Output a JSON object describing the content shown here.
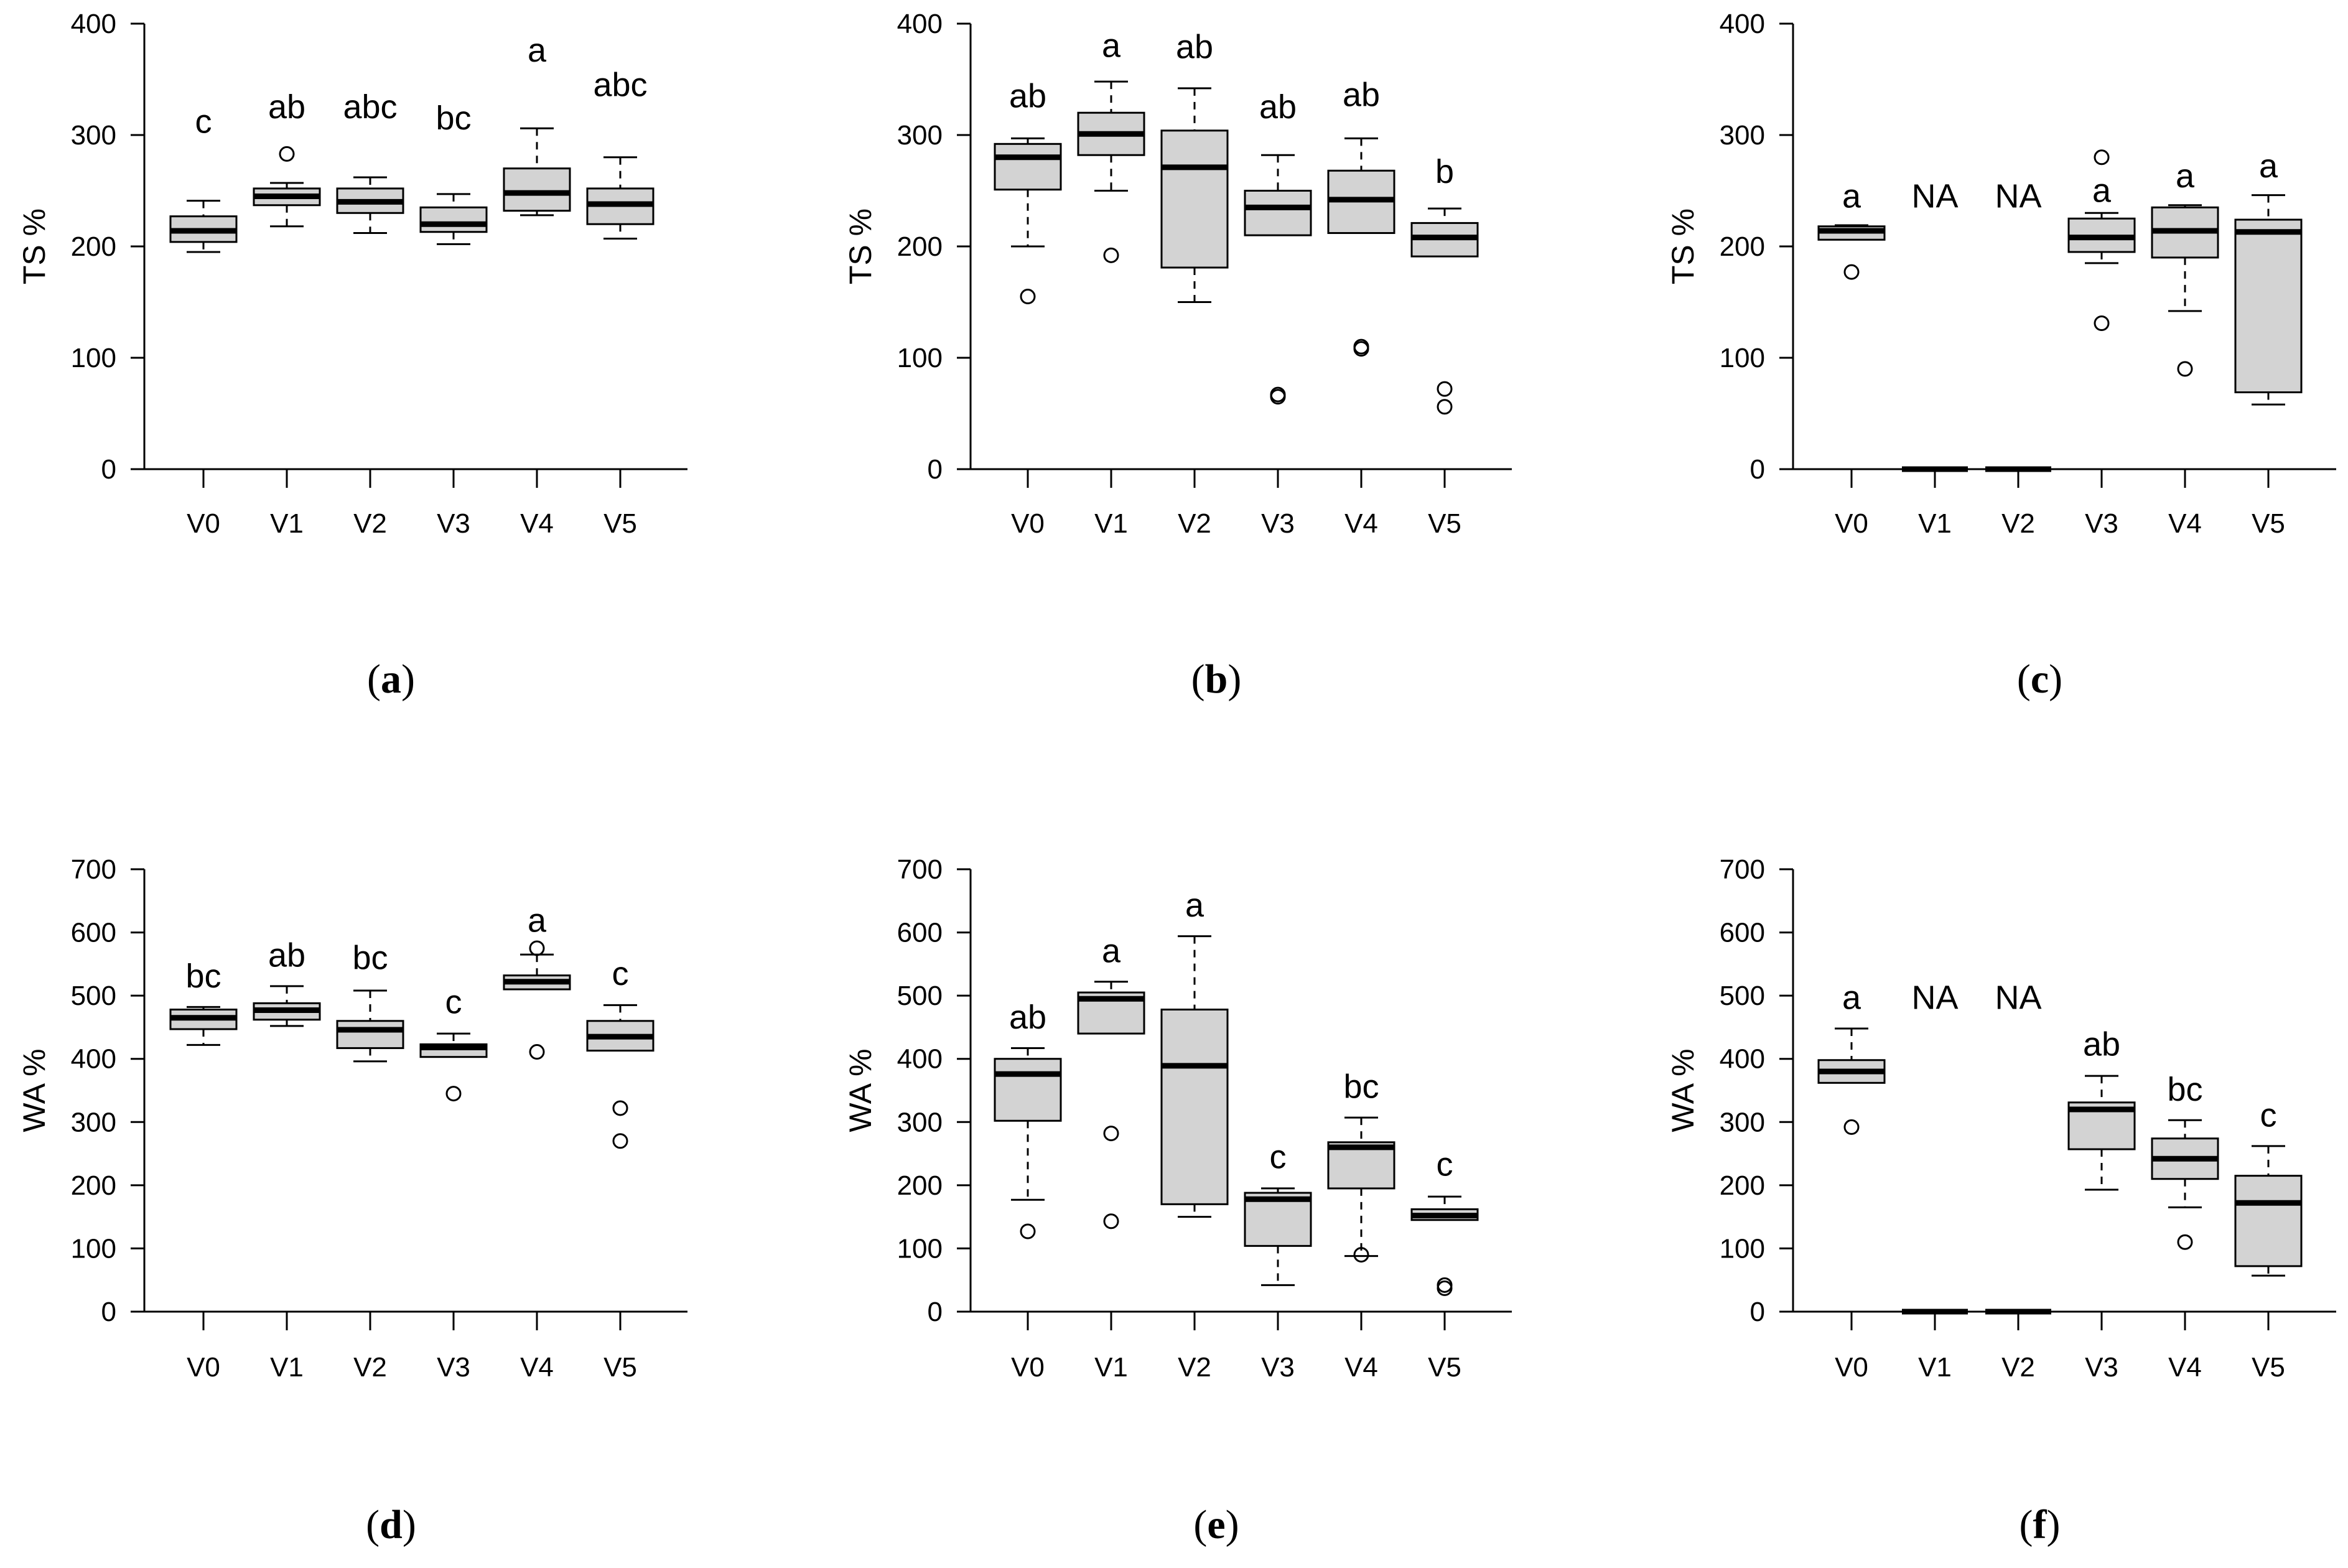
{
  "styles": {
    "box_fill": "#d3d3d3",
    "stroke": "#000000",
    "background": "#ffffff"
  },
  "chart_data": [
    {
      "id": "a",
      "type": "boxplot",
      "caption_letter": "a",
      "ylabel": "TS %",
      "ylim": [
        0,
        400
      ],
      "yticks": [
        0,
        100,
        200,
        300,
        400
      ],
      "categories": [
        "V0",
        "V1",
        "V2",
        "V3",
        "V4",
        "V5"
      ],
      "boxes": [
        {
          "q1": 204,
          "median": 214,
          "q3": 227,
          "wlo": 195,
          "whi": 241,
          "outliers": [],
          "letter": "c",
          "letter_y": 302
        },
        {
          "q1": 237,
          "median": 245,
          "q3": 252,
          "wlo": 218,
          "whi": 257,
          "outliers": [
            283
          ],
          "letter": "ab",
          "letter_y": 315
        },
        {
          "q1": 230,
          "median": 240,
          "q3": 252,
          "wlo": 212,
          "whi": 262,
          "outliers": [],
          "letter": "abc",
          "letter_y": 315
        },
        {
          "q1": 213,
          "median": 220,
          "q3": 235,
          "wlo": 202,
          "whi": 247,
          "outliers": [],
          "letter": "bc",
          "letter_y": 305
        },
        {
          "q1": 232,
          "median": 248,
          "q3": 270,
          "wlo": 228,
          "whi": 306,
          "outliers": [],
          "letter": "a",
          "letter_y": 366
        },
        {
          "q1": 220,
          "median": 238,
          "q3": 252,
          "wlo": 207,
          "whi": 280,
          "outliers": [],
          "letter": "abc",
          "letter_y": 335
        }
      ]
    },
    {
      "id": "b",
      "type": "boxplot",
      "caption_letter": "b",
      "ylabel": "TS %",
      "ylim": [
        0,
        400
      ],
      "yticks": [
        0,
        100,
        200,
        300,
        400
      ],
      "categories": [
        "V0",
        "V1",
        "V2",
        "V3",
        "V4",
        "V5"
      ],
      "boxes": [
        {
          "q1": 251,
          "median": 280,
          "q3": 292,
          "wlo": 200,
          "whi": 297,
          "outliers": [
            155
          ],
          "letter": "ab",
          "letter_y": 325
        },
        {
          "q1": 282,
          "median": 301,
          "q3": 320,
          "wlo": 250,
          "whi": 348,
          "outliers": [
            192
          ],
          "letter": "a",
          "letter_y": 370
        },
        {
          "q1": 181,
          "median": 271,
          "q3": 304,
          "wlo": 150,
          "whi": 342,
          "outliers": [],
          "letter": "ab",
          "letter_y": 369
        },
        {
          "q1": 210,
          "median": 235,
          "q3": 250,
          "wlo": 210,
          "whi": 282,
          "outliers": [
            67,
            65
          ],
          "letter": "ab",
          "letter_y": 315
        },
        {
          "q1": 212,
          "median": 242,
          "q3": 268,
          "wlo": 212,
          "whi": 297,
          "outliers": [
            110,
            108
          ],
          "letter": "ab",
          "letter_y": 326
        },
        {
          "q1": 191,
          "median": 208,
          "q3": 221,
          "wlo": 191,
          "whi": 234,
          "outliers": [
            72,
            56
          ],
          "letter": "b",
          "letter_y": 257
        }
      ]
    },
    {
      "id": "c",
      "type": "boxplot",
      "caption_letter": "c",
      "ylabel": "TS %",
      "ylim": [
        0,
        400
      ],
      "yticks": [
        0,
        100,
        200,
        300,
        400
      ],
      "categories": [
        "V0",
        "V1",
        "V2",
        "V3",
        "V4",
        "V5"
      ],
      "boxes": [
        {
          "q1": 206,
          "median": 214,
          "q3": 218,
          "wlo": 206,
          "whi": 219,
          "outliers": [
            177
          ],
          "letter": "a",
          "letter_y": 235
        },
        {
          "q1": 0,
          "median": 0,
          "q3": 0,
          "wlo": 0,
          "whi": 0,
          "outliers": [],
          "letter": "NA",
          "letter_y": 235
        },
        {
          "q1": 0,
          "median": 0,
          "q3": 0,
          "wlo": 0,
          "whi": 0,
          "outliers": [],
          "letter": "NA",
          "letter_y": 235
        },
        {
          "q1": 195,
          "median": 208,
          "q3": 225,
          "wlo": 185,
          "whi": 230,
          "outliers": [
            280,
            131
          ],
          "letter": "a",
          "letter_y": 240
        },
        {
          "q1": 190,
          "median": 214,
          "q3": 235,
          "wlo": 142,
          "whi": 237,
          "outliers": [
            90
          ],
          "letter": "a",
          "letter_y": 253
        },
        {
          "q1": 69,
          "median": 213,
          "q3": 224,
          "wlo": 58,
          "whi": 246,
          "outliers": [],
          "letter": "a",
          "letter_y": 262
        }
      ]
    },
    {
      "id": "d",
      "type": "boxplot",
      "caption_letter": "d",
      "ylabel": "WA %",
      "ylim": [
        0,
        700
      ],
      "yticks": [
        0,
        100,
        200,
        300,
        400,
        500,
        600,
        700
      ],
      "categories": [
        "V0",
        "V1",
        "V2",
        "V3",
        "V4",
        "V5"
      ],
      "boxes": [
        {
          "q1": 447,
          "median": 465,
          "q3": 478,
          "wlo": 422,
          "whi": 482,
          "outliers": [],
          "letter": "bc",
          "letter_y": 513
        },
        {
          "q1": 462,
          "median": 477,
          "q3": 488,
          "wlo": 452,
          "whi": 515,
          "outliers": [],
          "letter": "ab",
          "letter_y": 546
        },
        {
          "q1": 417,
          "median": 446,
          "q3": 460,
          "wlo": 396,
          "whi": 508,
          "outliers": [],
          "letter": "bc",
          "letter_y": 542
        },
        {
          "q1": 403,
          "median": 418,
          "q3": 423,
          "wlo": 403,
          "whi": 440,
          "outliers": [
            345
          ],
          "letter": "c",
          "letter_y": 472
        },
        {
          "q1": 510,
          "median": 522,
          "q3": 532,
          "wlo": 510,
          "whi": 565,
          "outliers": [
            575,
            411
          ],
          "letter": "a",
          "letter_y": 601
        },
        {
          "q1": 413,
          "median": 435,
          "q3": 460,
          "wlo": 413,
          "whi": 485,
          "outliers": [
            322,
            270
          ],
          "letter": "c",
          "letter_y": 517
        }
      ]
    },
    {
      "id": "e",
      "type": "boxplot",
      "caption_letter": "e",
      "ylabel": "WA %",
      "ylim": [
        0,
        700
      ],
      "yticks": [
        0,
        100,
        200,
        300,
        400,
        500,
        600,
        700
      ],
      "categories": [
        "V0",
        "V1",
        "V2",
        "V3",
        "V4",
        "V5"
      ],
      "boxes": [
        {
          "q1": 302,
          "median": 376,
          "q3": 400,
          "wlo": 177,
          "whi": 417,
          "outliers": [
            127
          ],
          "letter": "ab",
          "letter_y": 448
        },
        {
          "q1": 440,
          "median": 495,
          "q3": 505,
          "wlo": 440,
          "whi": 522,
          "outliers": [
            282,
            143
          ],
          "letter": "a",
          "letter_y": 553
        },
        {
          "q1": 170,
          "median": 389,
          "q3": 478,
          "wlo": 150,
          "whi": 594,
          "outliers": [],
          "letter": "a",
          "letter_y": 625
        },
        {
          "q1": 104,
          "median": 178,
          "q3": 188,
          "wlo": 42,
          "whi": 195,
          "outliers": [],
          "letter": "c",
          "letter_y": 227
        },
        {
          "q1": 195,
          "median": 260,
          "q3": 268,
          "wlo": 88,
          "whi": 307,
          "outliers": [
            90
          ],
          "letter": "bc",
          "letter_y": 338
        },
        {
          "q1": 145,
          "median": 152,
          "q3": 162,
          "wlo": 145,
          "whi": 182,
          "outliers": [
            42,
            37
          ],
          "letter": "c",
          "letter_y": 215
        }
      ]
    },
    {
      "id": "f",
      "type": "boxplot",
      "caption_letter": "f",
      "ylabel": "WA %",
      "ylim": [
        0,
        700
      ],
      "yticks": [
        0,
        100,
        200,
        300,
        400,
        500,
        600,
        700
      ],
      "categories": [
        "V0",
        "V1",
        "V2",
        "V3",
        "V4",
        "V5"
      ],
      "boxes": [
        {
          "q1": 362,
          "median": 380,
          "q3": 398,
          "wlo": 362,
          "whi": 448,
          "outliers": [
            292
          ],
          "letter": "a",
          "letter_y": 479
        },
        {
          "q1": 0,
          "median": 0,
          "q3": 0,
          "wlo": 0,
          "whi": 0,
          "outliers": [],
          "letter": "NA",
          "letter_y": 479
        },
        {
          "q1": 0,
          "median": 0,
          "q3": 0,
          "wlo": 0,
          "whi": 0,
          "outliers": [],
          "letter": "NA",
          "letter_y": 479
        },
        {
          "q1": 257,
          "median": 320,
          "q3": 331,
          "wlo": 193,
          "whi": 373,
          "outliers": [],
          "letter": "ab",
          "letter_y": 405
        },
        {
          "q1": 210,
          "median": 242,
          "q3": 274,
          "wlo": 165,
          "whi": 303,
          "outliers": [
            110
          ],
          "letter": "bc",
          "letter_y": 334
        },
        {
          "q1": 72,
          "median": 172,
          "q3": 215,
          "wlo": 57,
          "whi": 262,
          "outliers": [],
          "letter": "c",
          "letter_y": 293
        }
      ]
    }
  ]
}
